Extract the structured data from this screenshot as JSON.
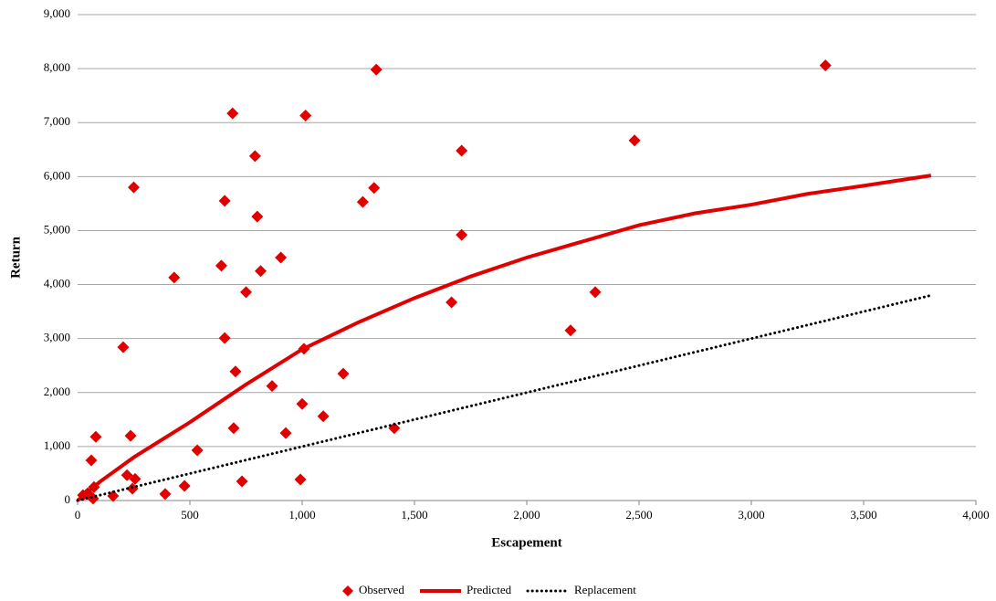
{
  "chart_data": {
    "type": "scatter",
    "x_label": "Escapement",
    "y_label": "Return",
    "xlim": [
      0,
      4000
    ],
    "xticks": [
      0,
      500,
      {
        "value": 1000,
        "label": "1,000"
      },
      {
        "value": 1500,
        "label": "1,500"
      },
      {
        "value": 2000,
        "label": "2,000"
      },
      {
        "value": 2500,
        "label": "2,500"
      },
      {
        "value": 3000,
        "label": "3,000"
      },
      {
        "value": 3500,
        "label": "3,500"
      },
      {
        "value": 4000,
        "label": "4,000"
      }
    ],
    "ylim": [
      0,
      9000
    ],
    "yticks": [
      0,
      {
        "value": 1000,
        "label": "1,000"
      },
      {
        "value": 2000,
        "label": "2,000"
      },
      {
        "value": 3000,
        "label": "3,000"
      },
      {
        "value": 4000,
        "label": "4,000"
      },
      {
        "value": 5000,
        "label": "5,000"
      },
      {
        "value": 6000,
        "label": "6,000"
      },
      {
        "value": 7000,
        "label": "7,000"
      },
      {
        "value": 8000,
        "label": "8,000"
      },
      {
        "value": 9000,
        "label": "9,000"
      }
    ],
    "grid": true,
    "legend": "bottom",
    "series": [
      {
        "name": "Observed",
        "color": "#e00000",
        "mode": "markers",
        "x": [
          1330,
          3330,
          690,
          1015,
          790,
          1710,
          2480,
          250,
          655,
          1320,
          1270,
          800,
          1710,
          430,
          640,
          815,
          905,
          750,
          1665,
          2305,
          2195,
          203,
          655,
          1008,
          703,
          1183,
          866,
          1000,
          1094,
          695,
          927,
          1410,
          81,
          236,
          61,
          533,
          220,
          256,
          244,
          73,
          476,
          732,
          992,
          390,
          158,
          69,
          24,
          45
        ],
        "values": [
          7980,
          8060,
          7170,
          7130,
          6380,
          6480,
          6670,
          5800,
          5550,
          5790,
          5530,
          5260,
          4920,
          4130,
          4350,
          4250,
          4500,
          3860,
          3670,
          3860,
          3150,
          2840,
          3010,
          2810,
          2390,
          2350,
          2120,
          1790,
          1560,
          1340,
          1250,
          1340,
          1180,
          1200,
          745,
          930,
          470,
          400,
          220,
          250,
          270,
          355,
          390,
          120,
          85,
          35,
          100,
          135
        ]
      },
      {
        "name": "Predicted",
        "color": "#e00000",
        "mode": "line",
        "dash": "solid",
        "x": [
          0,
          100,
          250,
          500,
          750,
          1000,
          1250,
          1500,
          1750,
          2000,
          2250,
          2500,
          2750,
          3000,
          3250,
          3500,
          3800
        ],
        "values": [
          0,
          350,
          800,
          1450,
          2150,
          2800,
          3300,
          3750,
          4150,
          4500,
          4800,
          5100,
          5320,
          5480,
          5680,
          5830,
          6020
        ]
      },
      {
        "name": "Replacement",
        "color": "#000000",
        "mode": "line",
        "dash": "dotted",
        "x": [
          0,
          3800
        ],
        "values": [
          0,
          3800
        ]
      }
    ]
  }
}
